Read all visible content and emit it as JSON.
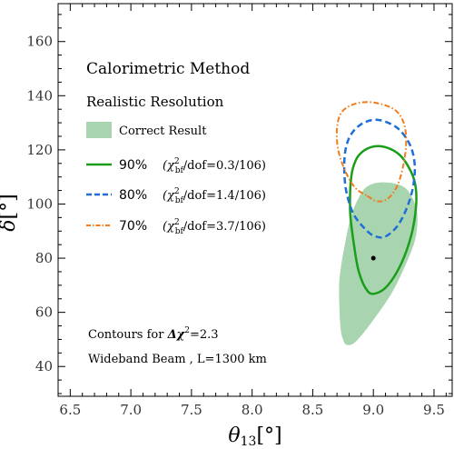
{
  "chart_data": {
    "type": "contour",
    "xlabel": "θ13[°]",
    "ylabel": "δ[°]",
    "xlim": [
      6.4,
      9.65
    ],
    "ylim": [
      29,
      174
    ],
    "xticks": [
      "6.5",
      "7.0",
      "7.5",
      "8.0",
      "8.5",
      "9.0",
      "9.5"
    ],
    "xtick_values": [
      6.5,
      7.0,
      7.5,
      8.0,
      8.5,
      9.0,
      9.5
    ],
    "yticks": [
      "40",
      "60",
      "80",
      "100",
      "120",
      "140",
      "160"
    ],
    "ytick_values": [
      40,
      60,
      80,
      100,
      120,
      140,
      160
    ],
    "annotations": {
      "title": "Calorimetric Method",
      "subtitle": "Realistic Resolution",
      "note_line1_prefix": "Contours for ",
      "note_line1_symbol": "Δχ",
      "note_line1_sup": "2",
      "note_line1_suffix": "=2.3",
      "note_line2": "Wideband Beam , L=1300 km"
    },
    "legend": [
      {
        "key": "correct",
        "label": "Correct Result",
        "style": "fill",
        "color": "#a8d5b0"
      },
      {
        "key": "c90",
        "pct": "90%",
        "chi_prefix": "(χ",
        "chi_sup": "2",
        "chi_sub": "bf",
        "chi_suffix": "/dof=0.3/106)",
        "style": "solid",
        "color": "#1a9e1a"
      },
      {
        "key": "c80",
        "pct": "80%",
        "chi_prefix": "(χ",
        "chi_sup": "2",
        "chi_sub": "bf",
        "chi_suffix": "/dof=1.4/106)",
        "style": "dashed",
        "color": "#1f6fd6"
      },
      {
        "key": "c70",
        "pct": "70%",
        "chi_prefix": "(χ",
        "chi_sup": "2",
        "chi_sub": "bf",
        "chi_suffix": "/dof=3.7/106)",
        "style": "dashdot",
        "color": "#f07c1e"
      }
    ],
    "best_fit_point": {
      "x": 9.0,
      "y": 80
    },
    "contours": [
      {
        "key": "correct",
        "style": "fill",
        "color": "#a8d5b0",
        "points": [
          [
            8.75,
            50
          ],
          [
            8.78,
            48
          ],
          [
            8.85,
            49
          ],
          [
            8.98,
            56
          ],
          [
            9.15,
            67
          ],
          [
            9.28,
            79
          ],
          [
            9.35,
            88
          ],
          [
            9.36,
            97
          ],
          [
            9.3,
            104
          ],
          [
            9.22,
            107
          ],
          [
            9.08,
            108
          ],
          [
            8.97,
            107
          ],
          [
            8.9,
            104
          ],
          [
            8.82,
            96
          ],
          [
            8.76,
            84
          ],
          [
            8.72,
            72
          ],
          [
            8.72,
            62
          ],
          [
            8.73,
            54
          ]
        ]
      },
      {
        "key": "c90",
        "style": "solid",
        "color": "#1a9e1a",
        "points": [
          [
            8.95,
            68
          ],
          [
            9.02,
            67
          ],
          [
            9.12,
            70
          ],
          [
            9.23,
            78
          ],
          [
            9.31,
            88
          ],
          [
            9.35,
            98
          ],
          [
            9.35,
            106
          ],
          [
            9.31,
            112
          ],
          [
            9.22,
            118
          ],
          [
            9.1,
            121
          ],
          [
            8.98,
            121
          ],
          [
            8.88,
            118
          ],
          [
            8.83,
            113
          ],
          [
            8.81,
            106
          ],
          [
            8.81,
            96
          ],
          [
            8.84,
            85
          ],
          [
            8.88,
            75
          ]
        ]
      },
      {
        "key": "c80",
        "style": "dashed",
        "color": "#1f6fd6",
        "points": [
          [
            8.95,
            90
          ],
          [
            9.02,
            88
          ],
          [
            9.1,
            88
          ],
          [
            9.2,
            92
          ],
          [
            9.28,
            99
          ],
          [
            9.33,
            107
          ],
          [
            9.34,
            115
          ],
          [
            9.3,
            122
          ],
          [
            9.2,
            128
          ],
          [
            9.05,
            131
          ],
          [
            8.92,
            130
          ],
          [
            8.82,
            126
          ],
          [
            8.77,
            120
          ],
          [
            8.76,
            112
          ],
          [
            8.78,
            104
          ],
          [
            8.84,
            96
          ]
        ]
      },
      {
        "key": "c70",
        "style": "dashdot",
        "color": "#f07c1e",
        "points": [
          [
            8.95,
            103
          ],
          [
            9.03,
            101
          ],
          [
            9.12,
            102
          ],
          [
            9.2,
            107
          ],
          [
            9.25,
            115
          ],
          [
            9.27,
            123
          ],
          [
            9.25,
            130
          ],
          [
            9.17,
            135
          ],
          [
            9.0,
            137.5
          ],
          [
            8.85,
            137
          ],
          [
            8.74,
            134
          ],
          [
            8.7,
            128
          ],
          [
            8.71,
            120
          ],
          [
            8.77,
            112
          ],
          [
            8.85,
            106
          ]
        ]
      }
    ]
  }
}
